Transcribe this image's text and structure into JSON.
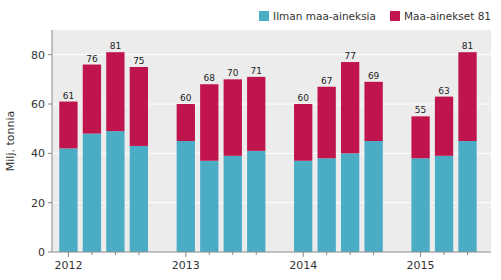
{
  "chart_data": {
    "type": "bar",
    "stacked": true,
    "categories": [
      "2012",
      null,
      null,
      null,
      "2013",
      null,
      null,
      null,
      "2014",
      null,
      null,
      null,
      "2015",
      null,
      null
    ],
    "series": [
      {
        "name": "Ilman maa-aineksia",
        "color": "#4bacc6",
        "values": [
          42,
          48,
          49,
          43,
          45,
          37,
          39,
          41,
          37,
          38,
          40,
          45,
          38,
          39,
          45
        ]
      },
      {
        "name": "Maa-ainekset 81",
        "color": "#c0144c",
        "values": [
          19,
          28,
          32,
          32,
          15,
          31,
          31,
          30,
          23,
          29,
          37,
          24,
          17,
          24,
          36
        ]
      }
    ],
    "totals": [
      61,
      76,
      81,
      75,
      60,
      68,
      70,
      71,
      60,
      67,
      77,
      69,
      55,
      63,
      81
    ],
    "ylabel": "Milj. tonnia",
    "ylim": [
      0,
      90
    ],
    "yticks": [
      0,
      20,
      40,
      60,
      80
    ],
    "grid": true,
    "legend": "upper right"
  }
}
